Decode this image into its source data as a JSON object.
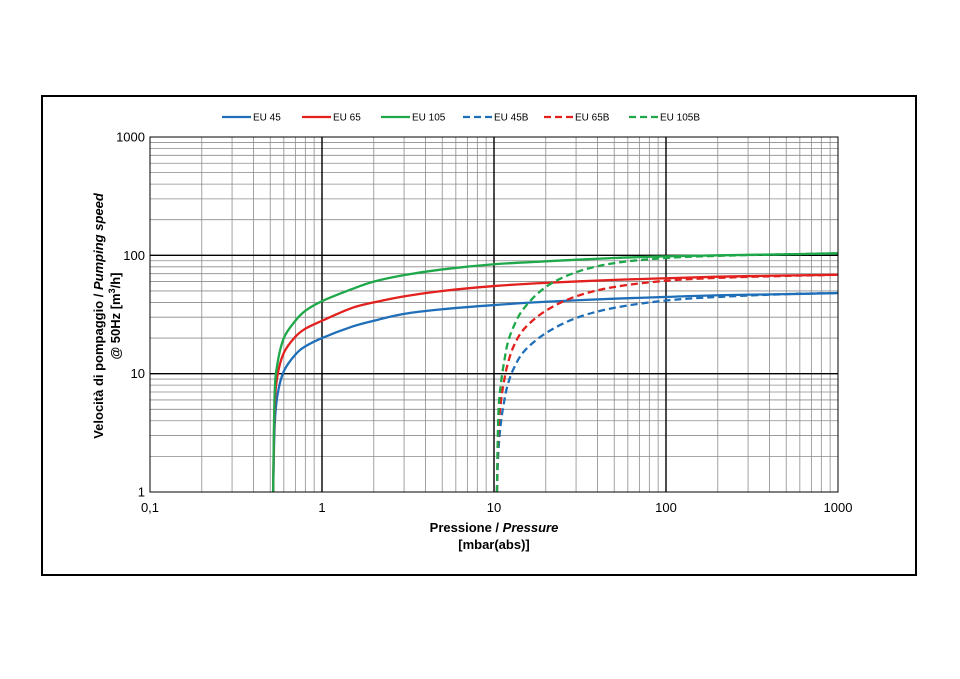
{
  "chart_data": {
    "type": "line",
    "xscale": "log",
    "yscale": "log",
    "xlim": [
      0.1,
      1000
    ],
    "ylim": [
      1,
      1000
    ],
    "grid": true,
    "legend_position": "top",
    "xlabel": {
      "line1_plain": "Pressione / ",
      "line1_italic": "Pressure",
      "line2": "[mbar(abs)]"
    },
    "ylabel": {
      "line1_plain": "Velocità di pompaggio / ",
      "line1_italic": "Pumping speed",
      "line2_prefix": "@ 50Hz [m",
      "line2_sup": "3",
      "line2_suffix": "/h]"
    },
    "x_ticks": [
      {
        "value": 0.1,
        "label": "0,1"
      },
      {
        "value": 1,
        "label": "1"
      },
      {
        "value": 10,
        "label": "10"
      },
      {
        "value": 100,
        "label": "100"
      },
      {
        "value": 1000,
        "label": "1000"
      }
    ],
    "y_ticks": [
      {
        "value": 1,
        "label": "1"
      },
      {
        "value": 10,
        "label": "10"
      },
      {
        "value": 100,
        "label": "100"
      },
      {
        "value": 1000,
        "label": "1000"
      }
    ],
    "series": [
      {
        "name": "EU 45",
        "color": "#1f6fb8",
        "dash": false,
        "x": [
          0.52,
          0.53,
          0.55,
          0.6,
          0.7,
          0.8,
          1,
          1.5,
          2,
          3,
          5,
          10,
          20,
          50,
          100,
          200,
          500,
          1000
        ],
        "y": [
          1,
          3.5,
          6.5,
          10.5,
          14.5,
          17,
          20,
          25,
          28,
          32,
          35,
          38,
          40.5,
          43,
          44.5,
          46,
          47,
          48
        ]
      },
      {
        "name": "EU 65",
        "color": "#e2201d",
        "dash": false,
        "x": [
          0.52,
          0.53,
          0.55,
          0.6,
          0.7,
          0.8,
          1,
          1.5,
          2,
          3,
          5,
          10,
          20,
          50,
          100,
          200,
          500,
          1000
        ],
        "y": [
          1,
          5,
          9.5,
          15,
          20.5,
          24,
          28,
          36,
          40,
          45,
          50,
          55,
          58.5,
          62,
          64,
          66,
          67.5,
          68.5
        ]
      },
      {
        "name": "EU 105",
        "color": "#1ea84a",
        "dash": false,
        "x": [
          0.52,
          0.53,
          0.55,
          0.6,
          0.7,
          0.8,
          1,
          1.5,
          2,
          3,
          5,
          10,
          20,
          50,
          100,
          200,
          500,
          1000
        ],
        "y": [
          1,
          6.5,
          12,
          20,
          28,
          34,
          41,
          52,
          60,
          68,
          76,
          84,
          89,
          95,
          98,
          100,
          102,
          104
        ]
      },
      {
        "name": "EU 45B",
        "color": "#1f6fb8",
        "dash": true,
        "x": [
          10.4,
          10.6,
          11,
          11.5,
          12,
          13,
          15,
          20,
          30,
          50,
          100,
          200,
          500,
          1000
        ],
        "y": [
          1,
          2.2,
          4,
          6,
          8,
          11,
          15.5,
          22,
          29.5,
          36,
          41.5,
          44.5,
          47,
          48
        ]
      },
      {
        "name": "EU 65B",
        "color": "#e2201d",
        "dash": true,
        "x": [
          10.4,
          10.6,
          11,
          11.5,
          12,
          13,
          15,
          20,
          30,
          50,
          100,
          200,
          500,
          1000
        ],
        "y": [
          1,
          3.2,
          6,
          9,
          12,
          17,
          24,
          34,
          45,
          54,
          61,
          64.5,
          67,
          68.5
        ]
      },
      {
        "name": "EU 105B",
        "color": "#1ea84a",
        "dash": true,
        "x": [
          10.4,
          10.6,
          11,
          11.5,
          12,
          13,
          15,
          20,
          30,
          50,
          100,
          200,
          500,
          1000
        ],
        "y": [
          1,
          4.5,
          8.5,
          13,
          18,
          25,
          36,
          54,
          72,
          86,
          95,
          99,
          102,
          104
        ]
      }
    ]
  }
}
